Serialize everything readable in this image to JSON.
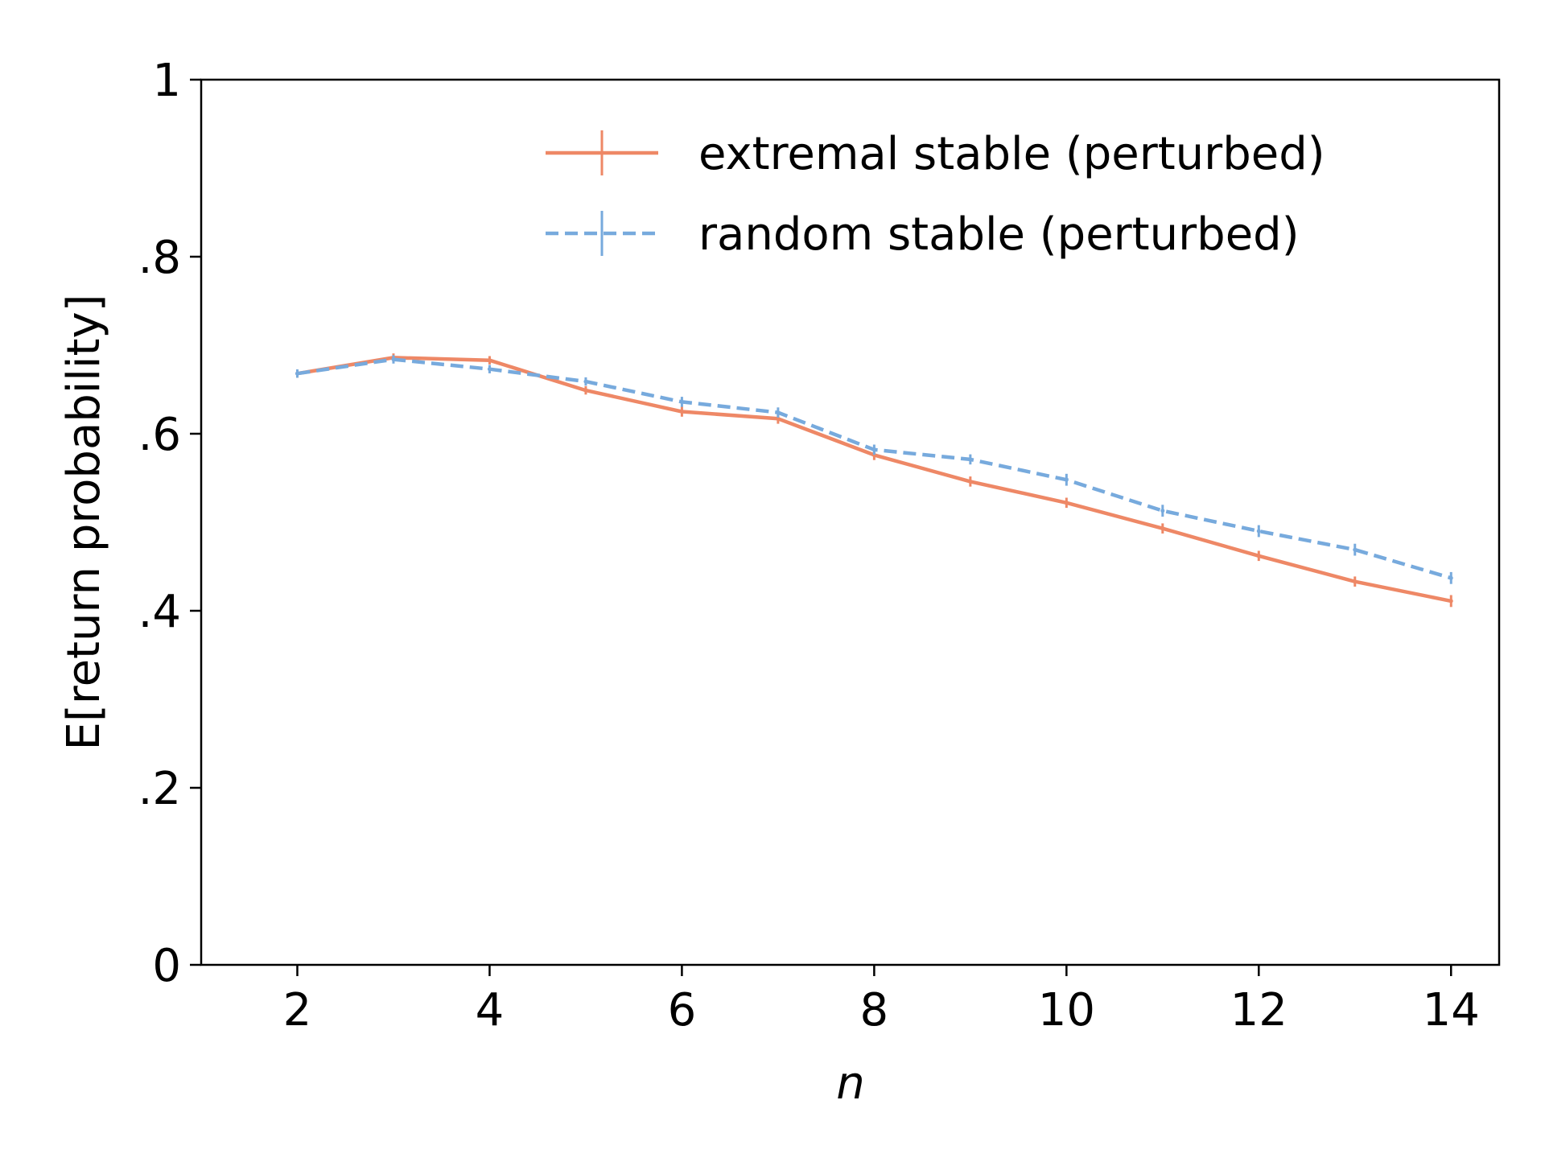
{
  "chart_data": {
    "type": "line",
    "title": "",
    "xlabel": "n",
    "ylabel": "E[return probability]",
    "xlim": [
      1,
      14.5
    ],
    "ylim": [
      0,
      1
    ],
    "x_ticks": [
      2,
      4,
      6,
      8,
      10,
      12,
      14
    ],
    "x_tick_labels": [
      "2",
      "4",
      "6",
      "8",
      "10",
      "12",
      "14"
    ],
    "y_ticks": [
      0,
      0.2,
      0.4,
      0.6,
      0.8,
      1
    ],
    "y_tick_labels": [
      "0",
      ".2",
      ".4",
      ".6",
      ".8",
      "1"
    ],
    "grid": false,
    "legend_position": "top-right",
    "x": [
      2,
      3,
      4,
      5,
      6,
      7,
      8,
      9,
      10,
      11,
      12,
      13,
      14
    ],
    "series": [
      {
        "name": "extremal stable (perturbed)",
        "color": "#ee8866",
        "line_style": "solid",
        "values": [
          0.668,
          0.686,
          0.683,
          0.649,
          0.625,
          0.617,
          0.576,
          0.546,
          0.522,
          0.493,
          0.462,
          0.433,
          0.411
        ],
        "error": [
          0.002,
          0.002,
          0.002,
          0.002,
          0.003,
          0.003,
          0.003,
          0.003,
          0.003,
          0.003,
          0.003,
          0.003,
          0.004
        ]
      },
      {
        "name": "random stable (perturbed)",
        "color": "#77aadd",
        "line_style": "dashed",
        "values": [
          0.668,
          0.684,
          0.673,
          0.659,
          0.636,
          0.624,
          0.582,
          0.571,
          0.548,
          0.513,
          0.49,
          0.469,
          0.437
        ],
        "error": [
          0.002,
          0.002,
          0.002,
          0.002,
          0.003,
          0.003,
          0.003,
          0.003,
          0.004,
          0.004,
          0.004,
          0.004,
          0.004
        ]
      }
    ]
  }
}
